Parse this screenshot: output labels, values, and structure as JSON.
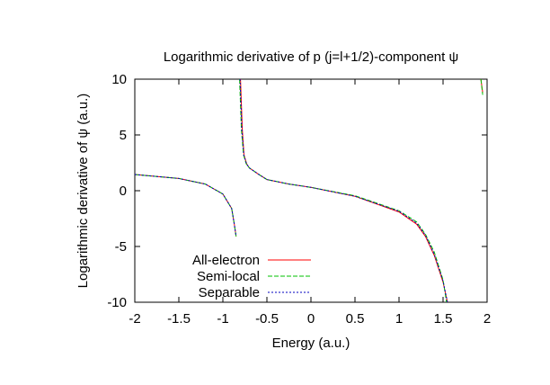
{
  "chart_data": {
    "type": "line",
    "title": "Logarithmic derivative of p (j=l+1/2)-component ψ",
    "xlabel": "Energy (a.u.)",
    "ylabel": "Logarithmic derivative of ψ (a.u.)",
    "xlim": [
      -2,
      2
    ],
    "ylim": [
      -10,
      10
    ],
    "xticks": [
      "-2",
      "-1.5",
      "-1",
      "-0.5",
      "0",
      "0.5",
      "1",
      "1.5",
      "2"
    ],
    "yticks": [
      "10",
      "5",
      "0",
      "-5",
      "-10"
    ],
    "grid": false,
    "legend_position": "bottom-left",
    "series": [
      {
        "name": "All-electron",
        "color": "#ff0000",
        "dash": "",
        "segments": [
          [
            [
              -2.0,
              1.45
            ],
            [
              -1.5,
              1.1
            ],
            [
              -1.2,
              0.6
            ],
            [
              -1.0,
              -0.3
            ],
            [
              -0.9,
              -1.6
            ],
            [
              -0.87,
              -3.0
            ],
            [
              -0.85,
              -4.1
            ]
          ],
          [
            [
              -0.8,
              10.0
            ],
            [
              -0.78,
              5.5
            ],
            [
              -0.76,
              3.2
            ],
            [
              -0.73,
              2.4
            ],
            [
              -0.7,
              2.05
            ],
            [
              -0.6,
              1.5
            ],
            [
              -0.5,
              1.0
            ],
            [
              -0.25,
              0.6
            ],
            [
              0.0,
              0.3
            ],
            [
              0.5,
              -0.5
            ],
            [
              1.0,
              -1.9
            ],
            [
              1.2,
              -3.0
            ],
            [
              1.3,
              -4.1
            ],
            [
              1.4,
              -5.8
            ],
            [
              1.5,
              -8.2
            ],
            [
              1.55,
              -10.0
            ]
          ],
          [
            [
              1.93,
              10.0
            ],
            [
              1.95,
              8.8
            ]
          ]
        ]
      },
      {
        "name": "Semi-local",
        "color": "#00c000",
        "dash": "5,2",
        "segments": [
          [
            [
              -2.0,
              1.45
            ],
            [
              -1.5,
              1.1
            ],
            [
              -1.2,
              0.6
            ],
            [
              -1.0,
              -0.3
            ],
            [
              -0.9,
              -1.6
            ],
            [
              -0.87,
              -3.0
            ],
            [
              -0.85,
              -4.1
            ]
          ],
          [
            [
              -0.81,
              10.0
            ],
            [
              -0.79,
              5.5
            ],
            [
              -0.765,
              3.2
            ],
            [
              -0.735,
              2.4
            ],
            [
              -0.7,
              2.05
            ],
            [
              -0.6,
              1.5
            ],
            [
              -0.5,
              1.0
            ],
            [
              -0.25,
              0.6
            ],
            [
              0.0,
              0.3
            ],
            [
              0.5,
              -0.45
            ],
            [
              1.0,
              -1.8
            ],
            [
              1.2,
              -2.8
            ],
            [
              1.3,
              -3.9
            ],
            [
              1.4,
              -5.5
            ],
            [
              1.5,
              -8.0
            ],
            [
              1.54,
              -10.0
            ]
          ],
          [
            [
              1.93,
              10.0
            ],
            [
              1.95,
              8.6
            ]
          ]
        ]
      },
      {
        "name": "Separable",
        "color": "#0000c0",
        "dash": "2,2",
        "segments": [
          [
            [
              -2.0,
              1.45
            ],
            [
              -1.5,
              1.1
            ],
            [
              -1.2,
              0.6
            ],
            [
              -1.0,
              -0.3
            ],
            [
              -0.9,
              -1.6
            ],
            [
              -0.87,
              -3.0
            ],
            [
              -0.85,
              -4.1
            ]
          ],
          [
            [
              -0.805,
              10.0
            ],
            [
              -0.785,
              5.5
            ],
            [
              -0.762,
              3.2
            ],
            [
              -0.732,
              2.4
            ],
            [
              -0.7,
              2.05
            ],
            [
              -0.6,
              1.5
            ],
            [
              -0.5,
              1.0
            ],
            [
              -0.25,
              0.6
            ],
            [
              0.0,
              0.3
            ],
            [
              0.5,
              -0.5
            ],
            [
              1.0,
              -1.85
            ],
            [
              1.2,
              -2.9
            ],
            [
              1.3,
              -4.0
            ],
            [
              1.4,
              -5.7
            ],
            [
              1.5,
              -8.1
            ],
            [
              1.55,
              -10.0
            ]
          ]
        ]
      }
    ]
  }
}
